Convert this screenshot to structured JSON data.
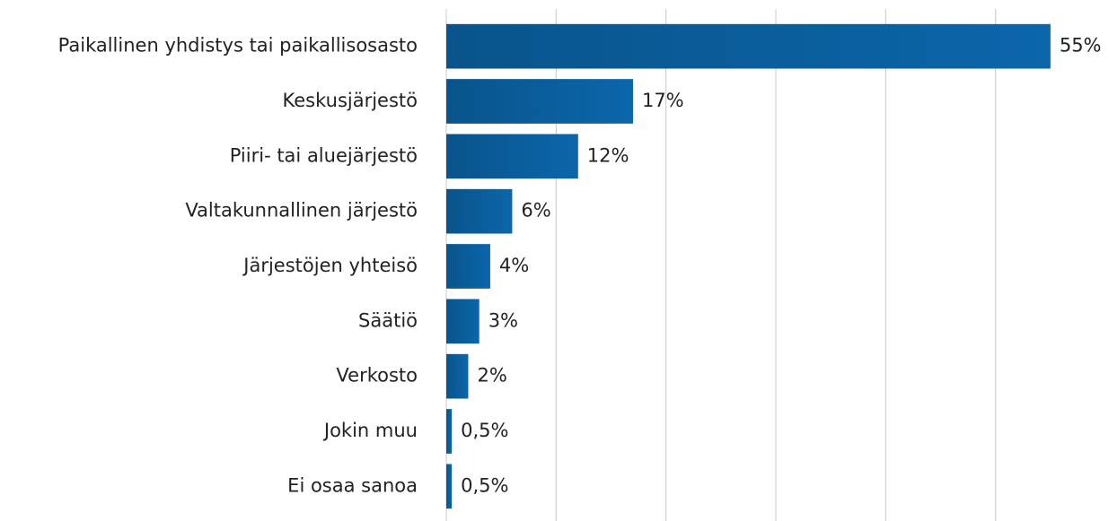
{
  "chart_data": {
    "type": "bar",
    "orientation": "horizontal",
    "categories": [
      "Paikallinen yhdistys tai paikallisosasto",
      "Keskusjärjestö",
      "Piiri- tai aluejärjestö",
      "Valtakunnallinen järjestö",
      "Järjestöjen yhteisö",
      "Säätiö",
      "Verkosto",
      "Jokin muu",
      "Ei osaa sanoa"
    ],
    "values": [
      55,
      17,
      12,
      6,
      4,
      3,
      2,
      0.5,
      0.5
    ],
    "value_labels": [
      "55%",
      "17%",
      "12%",
      "6%",
      "4%",
      "3%",
      "2%",
      "0,5%",
      "0,5%"
    ],
    "color": "#0b66aa",
    "xlim": [
      0,
      60
    ],
    "xticks": [
      0,
      10,
      20,
      30,
      40,
      50
    ],
    "grid": true
  }
}
